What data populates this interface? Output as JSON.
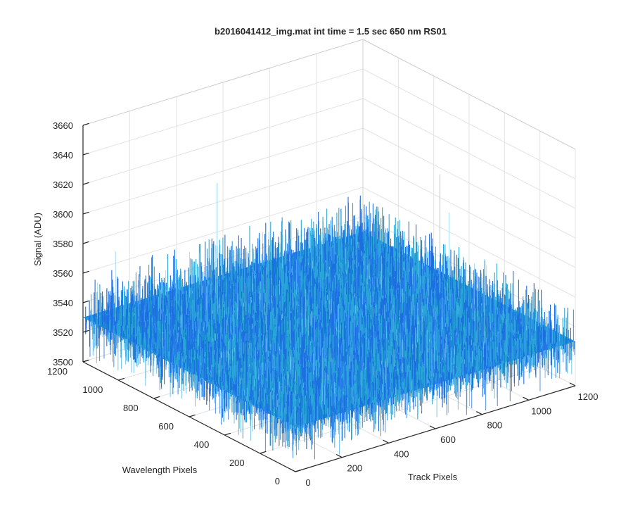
{
  "chart_data": {
    "type": "surface",
    "title": "b2016041412_img.mat int time = 1.5 sec  650 nm RS01",
    "xlabel": "Track Pixels",
    "ylabel": "Wavelength Pixels",
    "zlabel": "Signal (ADU)",
    "xlim": [
      0,
      1200
    ],
    "ylim": [
      0,
      1200
    ],
    "zlim": [
      3500,
      3660
    ],
    "x_ticks": [
      0,
      200,
      400,
      600,
      800,
      1000,
      1200
    ],
    "y_ticks": [
      0,
      200,
      400,
      600,
      800,
      1000,
      1200
    ],
    "z_ticks": [
      3500,
      3520,
      3540,
      3560,
      3580,
      3600,
      3620,
      3640,
      3660
    ],
    "x_tick_labels": [
      "0",
      "200",
      "400",
      "600",
      "800",
      "1000",
      "1200"
    ],
    "y_tick_labels": [
      "0",
      "200",
      "400",
      "600",
      "800",
      "1000",
      "1200"
    ],
    "z_tick_labels": [
      "3500",
      "3520",
      "3540",
      "3560",
      "3580",
      "3600",
      "3620",
      "3640",
      "3660"
    ],
    "surface": {
      "x_extent": [
        0,
        1200
      ],
      "y_extent": [
        0,
        1200
      ],
      "mean_signal": 3530,
      "noise_range": [
        3505,
        3560
      ],
      "spikes": [
        {
          "x": 1090,
          "y": 620,
          "z": 3610
        },
        {
          "x": 560,
          "y": 1180,
          "z": 3595
        }
      ]
    },
    "grid": true,
    "view": "3d-isometric",
    "colors": {
      "surface_low": "#1d6fe0",
      "surface_high": "#2aa6d8",
      "axis": "#262626",
      "grid": "#e3e3e3"
    }
  }
}
